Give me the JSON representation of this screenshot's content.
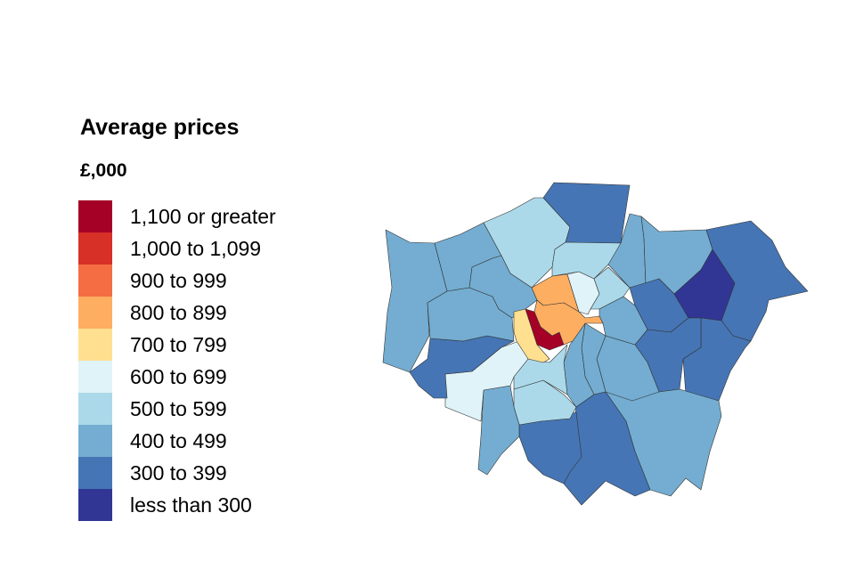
{
  "legend": {
    "title": "Average prices",
    "unit": "£,000",
    "bands": [
      {
        "label": "1,100 or greater",
        "color": "#a50026"
      },
      {
        "label": "1,000 to 1,099",
        "color": "#d73027"
      },
      {
        "label": "900 to 999",
        "color": "#f46d43"
      },
      {
        "label": "800 to 899",
        "color": "#fdae61"
      },
      {
        "label": "700 to 799",
        "color": "#fee090"
      },
      {
        "label": "600 to 699",
        "color": "#e0f3f8"
      },
      {
        "label": "500 to 599",
        "color": "#abd9e9"
      },
      {
        "label": "400 to 499",
        "color": "#74add1"
      },
      {
        "label": "300 to 399",
        "color": "#4575b4"
      },
      {
        "label": "less than 300",
        "color": "#313695"
      }
    ]
  },
  "region_bands": [
    7,
    7,
    6,
    8,
    7,
    7,
    8,
    9,
    8,
    8,
    8,
    7,
    7,
    7,
    7,
    8,
    8,
    6,
    6,
    7,
    5,
    8,
    7,
    7,
    4,
    0,
    3,
    3,
    5,
    6,
    6,
    7
  ]
}
